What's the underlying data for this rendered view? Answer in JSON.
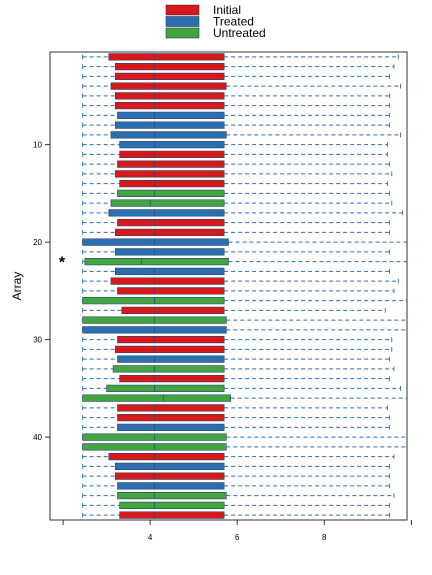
{
  "chart_data": {
    "type": "boxplot",
    "orientation": "horizontal",
    "ylabel": "Array",
    "y_ticks": [
      "10",
      "20",
      "30",
      "40"
    ],
    "x_ticks": [
      "4",
      "6",
      "8"
    ],
    "xlim": [
      1.7,
      9.9
    ],
    "ylim": [
      0.5,
      48.5
    ],
    "y_inverted": true,
    "whisker_style": "dashed",
    "grid": false,
    "legend": {
      "position": "top-center",
      "entries": [
        {
          "label": "Initial",
          "color": "#d7191c"
        },
        {
          "label": "Treated",
          "color": "#2c6fb0"
        },
        {
          "label": "Untreated",
          "color": "#41a541"
        }
      ]
    },
    "annotations": [
      {
        "text": "*",
        "array": 22
      }
    ],
    "series": [
      {
        "name": "Initial",
        "color": "#d7191c",
        "boxes": [
          {
            "array": 1,
            "wlo": 2.45,
            "q1": 3.05,
            "median": 4.1,
            "q3": 5.7,
            "whi": 9.7
          },
          {
            "array": 2,
            "wlo": 2.45,
            "q1": 3.2,
            "median": 4.1,
            "q3": 5.7,
            "whi": 9.6
          },
          {
            "array": 3,
            "wlo": 2.45,
            "q1": 3.2,
            "median": 4.1,
            "q3": 5.7,
            "whi": 9.5
          },
          {
            "array": 4,
            "wlo": 2.45,
            "q1": 3.1,
            "median": 4.1,
            "q3": 5.75,
            "whi": 9.75
          },
          {
            "array": 5,
            "wlo": 2.45,
            "q1": 3.2,
            "median": 4.1,
            "q3": 5.7,
            "whi": 9.5
          },
          {
            "array": 6,
            "wlo": 2.45,
            "q1": 3.2,
            "median": 4.1,
            "q3": 5.7,
            "whi": 9.5
          },
          {
            "array": 11,
            "wlo": 2.45,
            "q1": 3.3,
            "median": 4.1,
            "q3": 5.7,
            "whi": 9.45
          },
          {
            "array": 12,
            "wlo": 2.45,
            "q1": 3.25,
            "median": 4.1,
            "q3": 5.7,
            "whi": 9.5
          },
          {
            "array": 13,
            "wlo": 2.45,
            "q1": 3.2,
            "median": 4.1,
            "q3": 5.7,
            "whi": 9.55
          },
          {
            "array": 14,
            "wlo": 2.45,
            "q1": 3.3,
            "median": 4.1,
            "q3": 5.7,
            "whi": 9.45
          },
          {
            "array": 18,
            "wlo": 2.45,
            "q1": 3.25,
            "median": 4.1,
            "q3": 5.7,
            "whi": 9.5
          },
          {
            "array": 19,
            "wlo": 2.45,
            "q1": 3.2,
            "median": 4.1,
            "q3": 5.7,
            "whi": 9.5
          },
          {
            "array": 24,
            "wlo": 2.45,
            "q1": 3.1,
            "median": 4.1,
            "q3": 5.7,
            "whi": 9.7
          },
          {
            "array": 25,
            "wlo": 2.45,
            "q1": 3.25,
            "median": 4.1,
            "q3": 5.7,
            "whi": 9.6
          },
          {
            "array": 27,
            "wlo": 2.45,
            "q1": 3.35,
            "median": 4.1,
            "q3": 5.7,
            "whi": 9.4
          },
          {
            "array": 30,
            "wlo": 2.45,
            "q1": 3.25,
            "median": 4.1,
            "q3": 5.7,
            "whi": 9.55
          },
          {
            "array": 31,
            "wlo": 2.45,
            "q1": 3.2,
            "median": 4.1,
            "q3": 5.7,
            "whi": 9.55
          },
          {
            "array": 34,
            "wlo": 2.45,
            "q1": 3.3,
            "median": 4.1,
            "q3": 5.7,
            "whi": 9.5
          },
          {
            "array": 37,
            "wlo": 2.45,
            "q1": 3.25,
            "median": 4.1,
            "q3": 5.7,
            "whi": 9.45
          },
          {
            "array": 38,
            "wlo": 2.45,
            "q1": 3.25,
            "median": 4.1,
            "q3": 5.7,
            "whi": 9.5
          },
          {
            "array": 42,
            "wlo": 2.45,
            "q1": 3.05,
            "median": 4.1,
            "q3": 5.7,
            "whi": 9.6
          },
          {
            "array": 44,
            "wlo": 2.45,
            "q1": 3.2,
            "median": 4.1,
            "q3": 5.7,
            "whi": 9.5
          },
          {
            "array": 48,
            "wlo": 2.45,
            "q1": 3.3,
            "median": 4.1,
            "q3": 5.7,
            "whi": 9.5
          }
        ]
      },
      {
        "name": "Treated",
        "color": "#2c6fb0",
        "boxes": [
          {
            "array": 7,
            "wlo": 2.45,
            "q1": 3.25,
            "median": 4.1,
            "q3": 5.7,
            "whi": 9.5
          },
          {
            "array": 8,
            "wlo": 2.45,
            "q1": 3.2,
            "median": 4.1,
            "q3": 5.7,
            "whi": 9.5
          },
          {
            "array": 9,
            "wlo": 2.45,
            "q1": 3.1,
            "median": 4.1,
            "q3": 5.75,
            "whi": 9.75
          },
          {
            "array": 10,
            "wlo": 2.45,
            "q1": 3.3,
            "median": 4.1,
            "q3": 5.7,
            "whi": 9.45
          },
          {
            "array": 17,
            "wlo": 2.45,
            "q1": 3.05,
            "median": 4.1,
            "q3": 5.7,
            "whi": 9.8
          },
          {
            "array": 20,
            "wlo": 2.45,
            "q1": 2.45,
            "median": 4.1,
            "q3": 5.8,
            "whi": 9.9
          },
          {
            "array": 21,
            "wlo": 2.45,
            "q1": 3.2,
            "median": 4.1,
            "q3": 5.7,
            "whi": 9.5
          },
          {
            "array": 23,
            "wlo": 2.45,
            "q1": 3.2,
            "median": 4.1,
            "q3": 5.7,
            "whi": 9.5
          },
          {
            "array": 29,
            "wlo": 2.45,
            "q1": 2.45,
            "median": 4.1,
            "q3": 5.75,
            "whi": 9.9
          },
          {
            "array": 32,
            "wlo": 2.45,
            "q1": 3.25,
            "median": 4.1,
            "q3": 5.7,
            "whi": 9.5
          },
          {
            "array": 39,
            "wlo": 2.45,
            "q1": 3.25,
            "median": 4.1,
            "q3": 5.7,
            "whi": 9.5
          },
          {
            "array": 43,
            "wlo": 2.45,
            "q1": 3.2,
            "median": 4.1,
            "q3": 5.7,
            "whi": 9.5
          },
          {
            "array": 45,
            "wlo": 2.45,
            "q1": 3.25,
            "median": 4.1,
            "q3": 5.7,
            "whi": 9.5
          }
        ]
      },
      {
        "name": "Untreated",
        "color": "#41a541",
        "boxes": [
          {
            "array": 15,
            "wlo": 2.45,
            "q1": 3.25,
            "median": 4.1,
            "q3": 5.7,
            "whi": 9.5
          },
          {
            "array": 16,
            "wlo": 2.45,
            "q1": 3.1,
            "median": 4.0,
            "q3": 5.7,
            "whi": 9.55
          },
          {
            "array": 22,
            "wlo": 2.45,
            "q1": 2.5,
            "median": 3.8,
            "q3": 5.8,
            "whi": 9.9
          },
          {
            "array": 26,
            "wlo": 2.45,
            "q1": 2.45,
            "median": 4.1,
            "q3": 5.7,
            "whi": 9.9
          },
          {
            "array": 28,
            "wlo": 2.45,
            "q1": 2.45,
            "median": 4.1,
            "q3": 5.75,
            "whi": 9.9
          },
          {
            "array": 33,
            "wlo": 2.45,
            "q1": 3.15,
            "median": 4.1,
            "q3": 5.7,
            "whi": 9.6
          },
          {
            "array": 35,
            "wlo": 2.45,
            "q1": 3.0,
            "median": 4.1,
            "q3": 5.7,
            "whi": 9.75
          },
          {
            "array": 36,
            "wlo": 2.45,
            "q1": 2.45,
            "median": 4.3,
            "q3": 5.85,
            "whi": 9.9
          },
          {
            "array": 40,
            "wlo": 2.45,
            "q1": 2.45,
            "median": 4.1,
            "q3": 5.75,
            "whi": 9.9
          },
          {
            "array": 41,
            "wlo": 2.45,
            "q1": 2.45,
            "median": 4.1,
            "q3": 5.75,
            "whi": 9.9
          },
          {
            "array": 46,
            "wlo": 2.45,
            "q1": 3.25,
            "median": 4.1,
            "q3": 5.75,
            "whi": 9.6
          },
          {
            "array": 47,
            "wlo": 2.45,
            "q1": 3.3,
            "median": 4.1,
            "q3": 5.7,
            "whi": 9.5
          }
        ]
      }
    ]
  }
}
